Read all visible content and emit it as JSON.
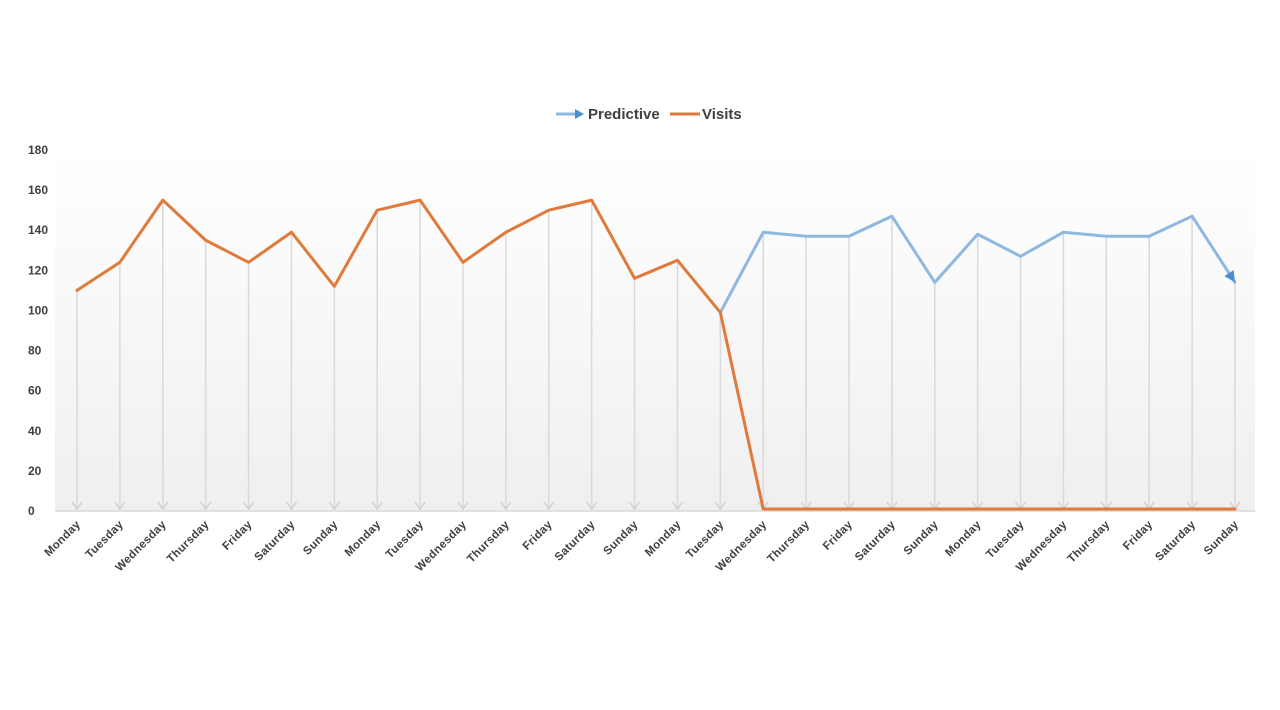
{
  "chart_data": {
    "type": "line",
    "title": "",
    "xlabel": "",
    "ylabel": "",
    "ylim": [
      0,
      180
    ],
    "y_ticks": [
      0,
      20,
      40,
      60,
      80,
      100,
      120,
      140,
      160,
      180
    ],
    "grid": "vertical drop lines",
    "legend_position": "top-center",
    "categories": [
      "Monday",
      "Tuesday",
      "Wednesday",
      "Thursday",
      "Friday",
      "Saturday",
      "Sunday",
      "Monday",
      "Tuesday",
      "Wednesday",
      "Thursday",
      "Friday",
      "Saturday",
      "Sunday",
      "Monday",
      "Tuesday",
      "Wednesday",
      "Thursday",
      "Friday",
      "Saturday",
      "Sunday",
      "Monday",
      "Tuesday",
      "Wednesday",
      "Thursday",
      "Friday",
      "Saturday",
      "Sunday"
    ],
    "series": [
      {
        "name": "Predictive",
        "color": "#8DB8E0",
        "marker": "arrow-end",
        "values": [
          null,
          null,
          null,
          null,
          null,
          null,
          null,
          null,
          null,
          null,
          null,
          null,
          null,
          null,
          null,
          99,
          139,
          137,
          137,
          147,
          114,
          138,
          127,
          139,
          137,
          137,
          147,
          114
        ]
      },
      {
        "name": "Visits",
        "color": "#E07A3C",
        "values": [
          110,
          124,
          155,
          135,
          124,
          139,
          112,
          150,
          155,
          124,
          139,
          150,
          155,
          116,
          125,
          99,
          1,
          1,
          1,
          1,
          1,
          1,
          1,
          1,
          1,
          1,
          1,
          1
        ]
      }
    ]
  }
}
